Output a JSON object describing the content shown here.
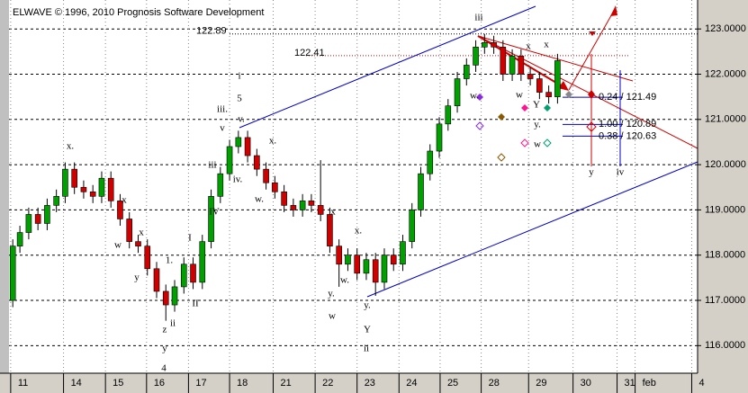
{
  "chart_data": {
    "type": "candlestick",
    "copyright": "ELWAVE © 1996, 2010 Prognosis Software Development",
    "up_color": "#00a000",
    "down_color": "#d00000",
    "grid": true,
    "x": [
      0.05,
      0.22,
      0.43,
      0.65,
      0.87,
      1.09,
      1.3,
      1.52,
      1.74,
      1.96,
      2.17,
      2.39,
      2.61,
      2.83,
      3.04,
      3.26,
      3.48,
      3.7,
      3.91,
      4.13,
      4.35,
      4.57,
      4.78,
      5,
      5.22,
      5.43,
      5.65,
      5.87,
      6.09,
      6.3,
      6.52,
      6.74,
      6.96,
      7.17,
      7.39,
      7.61,
      7.83,
      8.04,
      8.26,
      8.48,
      8.7,
      8.91,
      9.13,
      9.35,
      9.57,
      9.78,
      10,
      10.22,
      10.43,
      10.65,
      10.87,
      11.09,
      11.3,
      11.52,
      11.74,
      11.96,
      12.17,
      12.39,
      12.61,
      12.83,
      13.04
    ],
    "open": [
      117.0,
      118.2,
      118.5,
      118.9,
      118.7,
      119.1,
      119.3,
      119.9,
      119.5,
      119.4,
      119.3,
      119.7,
      119.2,
      118.8,
      118.3,
      118.2,
      117.7,
      117.2,
      116.9,
      117.3,
      117.8,
      117.4,
      118.3,
      119.3,
      119.8,
      120.4,
      120.6,
      120.2,
      119.9,
      119.6,
      119.4,
      119.1,
      119.0,
      119.2,
      119.1,
      118.9,
      118.2,
      117.8,
      118.0,
      117.6,
      117.9,
      117.4,
      118.0,
      117.8,
      118.3,
      119.0,
      119.8,
      120.3,
      120.9,
      121.3,
      121.9,
      122.2,
      122.6,
      122.7,
      122.6,
      122.0,
      122.4,
      122.0,
      121.9,
      121.6,
      121.5
    ],
    "high": [
      118.35,
      118.65,
      119.05,
      119.05,
      119.25,
      119.45,
      120.05,
      120.05,
      119.65,
      119.55,
      119.85,
      119.85,
      119.35,
      118.95,
      118.45,
      118.35,
      117.85,
      117.35,
      117.45,
      117.95,
      117.95,
      118.45,
      119.45,
      119.95,
      120.55,
      120.75,
      120.75,
      120.35,
      120.05,
      119.75,
      119.55,
      119.25,
      119.35,
      119.35,
      120.1,
      119.05,
      118.35,
      118.15,
      118.15,
      118.05,
      118.05,
      118.15,
      118.15,
      118.45,
      119.15,
      119.95,
      120.45,
      121.05,
      121.45,
      122.05,
      122.35,
      122.75,
      122.89,
      122.85,
      122.75,
      122.55,
      122.55,
      122.15,
      122.05,
      121.75,
      122.45
    ],
    "low": [
      116.85,
      118.05,
      118.35,
      118.55,
      118.55,
      118.95,
      119.15,
      119.35,
      119.25,
      119.15,
      119.15,
      119.05,
      118.65,
      118.15,
      118.05,
      117.55,
      117.05,
      116.55,
      116.75,
      117.15,
      117.25,
      117.25,
      118.15,
      119.15,
      119.65,
      120.25,
      120.05,
      119.75,
      119.45,
      119.25,
      118.95,
      118.85,
      118.85,
      118.95,
      118.75,
      118.05,
      117.3,
      117.65,
      117.45,
      117.45,
      117.1,
      117.25,
      117.65,
      117.65,
      118.15,
      118.85,
      119.65,
      120.15,
      120.75,
      121.15,
      121.75,
      122.05,
      122.45,
      122.45,
      121.85,
      121.85,
      121.85,
      121.75,
      121.45,
      121.35,
      121.35
    ],
    "close": [
      118.2,
      118.5,
      118.9,
      118.7,
      119.1,
      119.3,
      119.9,
      119.5,
      119.4,
      119.3,
      119.7,
      119.2,
      118.8,
      118.3,
      118.2,
      117.7,
      117.2,
      116.9,
      117.3,
      117.8,
      117.4,
      118.3,
      119.3,
      119.8,
      120.4,
      120.6,
      120.2,
      119.9,
      119.6,
      119.4,
      119.1,
      119.0,
      119.2,
      119.1,
      118.9,
      118.2,
      117.8,
      118.0,
      117.6,
      117.9,
      117.4,
      118.0,
      117.8,
      118.3,
      119.0,
      119.8,
      120.3,
      120.9,
      121.3,
      121.9,
      122.2,
      122.6,
      122.7,
      122.6,
      122.0,
      122.4,
      122.0,
      121.9,
      121.6,
      121.5,
      122.3
    ],
    "xlim": [
      -0.04,
      16.38
    ],
    "xticks": [
      {
        "value": 0,
        "label": "11"
      },
      {
        "value": 1.26,
        "label": "14"
      },
      {
        "value": 2.26,
        "label": "15"
      },
      {
        "value": 3.24,
        "label": "16"
      },
      {
        "value": 4.24,
        "label": "17"
      },
      {
        "value": 5.22,
        "label": "18"
      },
      {
        "value": 6.26,
        "label": "21"
      },
      {
        "value": 7.26,
        "label": "22"
      },
      {
        "value": 8.26,
        "label": "23"
      },
      {
        "value": 9.26,
        "label": "24"
      },
      {
        "value": 10.24,
        "label": "25"
      },
      {
        "value": 11.22,
        "label": "28"
      },
      {
        "value": 12.35,
        "label": "29"
      },
      {
        "value": 13.41,
        "label": "30"
      },
      {
        "value": 14.46,
        "label": "31"
      },
      {
        "value": 14.89,
        "label": "feb"
      },
      {
        "value": 16.24,
        "label": "4"
      }
    ],
    "ylim": [
      115.39,
      123.64
    ],
    "yticks": [
      {
        "value": 116,
        "label": "116.0000"
      },
      {
        "value": 117,
        "label": "117.0000"
      },
      {
        "value": 118,
        "label": "118.0000"
      },
      {
        "value": 119,
        "label": "119.0000"
      },
      {
        "value": 120,
        "label": "120.0000"
      },
      {
        "value": 121,
        "label": "121.0000"
      },
      {
        "value": 122,
        "label": "122.0000"
      },
      {
        "value": 123,
        "label": "123.0000"
      }
    ],
    "levels": [
      {
        "label": "122.89",
        "value": 122.89,
        "color": "#000000"
      },
      {
        "label": "122.41",
        "value": 122.41,
        "color": "#d00000"
      }
    ],
    "targets": [
      {
        "label": "0.24 / 121.49",
        "value": 121.49
      },
      {
        "label": "1.00 / 120.89",
        "value": 120.89
      },
      {
        "label": "0.38 / 120.63",
        "value": 120.63
      }
    ],
    "annotations": [
      {
        "text": "iii",
        "color": "#00008b"
      },
      {
        "text": "i",
        "color": "#00008b"
      },
      {
        "text": "5",
        "color": "#d00000"
      },
      {
        "text": "iii.",
        "color": "#777777"
      },
      {
        "text": "v.",
        "color": "#777777"
      },
      {
        "text": "v",
        "color": "#00a000"
      },
      {
        "text": "iii",
        "color": "#00a000"
      },
      {
        "text": "iv.",
        "color": "#777777"
      },
      {
        "text": "x.",
        "color": "#777777"
      },
      {
        "text": "w.",
        "color": "#777777"
      },
      {
        "text": "x.",
        "color": "#777777"
      },
      {
        "text": "x",
        "color": "#00a000"
      },
      {
        "text": "w",
        "color": "#00a000"
      },
      {
        "text": "x",
        "color": "#00a000"
      },
      {
        "text": "y",
        "color": "#00a000"
      },
      {
        "text": "1.",
        "color": "#777777"
      },
      {
        "text": "z",
        "color": "#00a000"
      },
      {
        "text": "ii",
        "color": "#777777"
      },
      {
        "text": "y",
        "color": "#777777"
      },
      {
        "text": "4",
        "color": "#d00000"
      },
      {
        "text": "I",
        "color": "#00a000"
      },
      {
        "text": "II",
        "color": "#00a000"
      },
      {
        "text": "IV",
        "color": "#00a000"
      },
      {
        "text": "x",
        "color": "#d00000"
      },
      {
        "text": "x.",
        "color": "#777777"
      },
      {
        "text": "w.",
        "color": "#777777"
      },
      {
        "text": "y.",
        "color": "#777777"
      },
      {
        "text": "w",
        "color": "#d00000"
      },
      {
        "text": "y.",
        "color": "#777777"
      },
      {
        "text": "Y",
        "color": "#d00000"
      },
      {
        "text": "ii",
        "color": "#00008b"
      },
      {
        "text": "w.",
        "color": "#777777"
      },
      {
        "text": "x",
        "color": "#00a000"
      },
      {
        "text": "w",
        "color": "#00a000"
      },
      {
        "text": "Y",
        "color": "#00a000"
      },
      {
        "text": "y.",
        "color": "#777777"
      },
      {
        "text": "x",
        "color": "#d00000"
      },
      {
        "text": "w",
        "color": "#d00000"
      },
      {
        "text": "y",
        "color": "#d00000"
      },
      {
        "text": "iv",
        "color": "#00008b"
      }
    ]
  }
}
